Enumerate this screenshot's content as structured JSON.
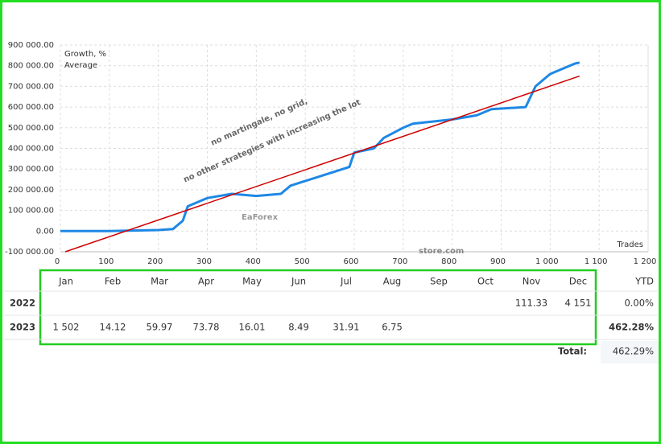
{
  "chart_data": {
    "type": "line",
    "series": [
      {
        "name": "Growth, %",
        "color": "#1e88e5",
        "x": [
          0,
          100,
          200,
          230,
          250,
          260,
          300,
          350,
          400,
          450,
          470,
          550,
          590,
          600,
          640,
          660,
          700,
          720,
          800,
          850,
          880,
          950,
          970,
          1000,
          1050,
          1060
        ],
        "values": [
          0,
          0,
          5000,
          10000,
          50000,
          120000,
          160000,
          180000,
          170000,
          180000,
          220000,
          280000,
          310000,
          380000,
          400000,
          450000,
          500000,
          520000,
          540000,
          560000,
          590000,
          600000,
          700000,
          760000,
          810000,
          815000
        ]
      },
      {
        "name": "Average",
        "color": "#d00000",
        "x": [
          10,
          1060
        ],
        "values": [
          -100000,
          750000
        ]
      }
    ],
    "x_label": "Trades",
    "xlim": [
      0,
      1200
    ],
    "ylim": [
      -100000,
      900000
    ],
    "xticks": [
      0,
      100,
      200,
      300,
      400,
      500,
      600,
      700,
      800,
      900,
      {
        "value": 1000,
        "label": "1 000"
      },
      {
        "value": 1100,
        "label": "1 100"
      },
      {
        "value": 1200,
        "label": "1 200"
      }
    ],
    "yticks": [
      {
        "value": -100000,
        "label": "-100 000.00"
      },
      {
        "value": 0,
        "label": "0.00"
      },
      {
        "value": 100000,
        "label": "100 000.00"
      },
      {
        "value": 200000,
        "label": "200 000.00"
      },
      {
        "value": 300000,
        "label": "300 000.00"
      },
      {
        "value": 400000,
        "label": "400 000.00"
      },
      {
        "value": 500000,
        "label": "500 000.00"
      },
      {
        "value": 600000,
        "label": "600 000.00"
      },
      {
        "value": 700000,
        "label": "700 000.00"
      },
      {
        "value": 800000,
        "label": "800 000.00"
      },
      {
        "value": 900000,
        "label": "900 000.00"
      }
    ],
    "grid": true,
    "legend": "upper left"
  },
  "watermark": {
    "lines": [
      "no martingale, no grid,",
      "no other strategies with increasing the lot"
    ],
    "logo": "EaForex",
    "logo_sub": "store.com"
  },
  "table": {
    "header": [
      "Jan",
      "Feb",
      "Mar",
      "Apr",
      "May",
      "Jun",
      "Jul",
      "Aug",
      "Sep",
      "Oct",
      "Nov",
      "Dec",
      "YTD"
    ],
    "rows": [
      {
        "year": "2022",
        "cells": [
          null,
          null,
          null,
          null,
          null,
          null,
          null,
          null,
          null,
          null,
          "111.33",
          "4 151"
        ],
        "ytd": "0.00%"
      },
      {
        "year": "2023",
        "cells": [
          "1 502",
          "14.12",
          "59.97",
          "73.78",
          "16.01",
          "8.49",
          "31.91",
          "6.75",
          null,
          null,
          null,
          null
        ],
        "ytd": "462.28%"
      }
    ],
    "total_label": "Total:",
    "total": "462.29%"
  }
}
